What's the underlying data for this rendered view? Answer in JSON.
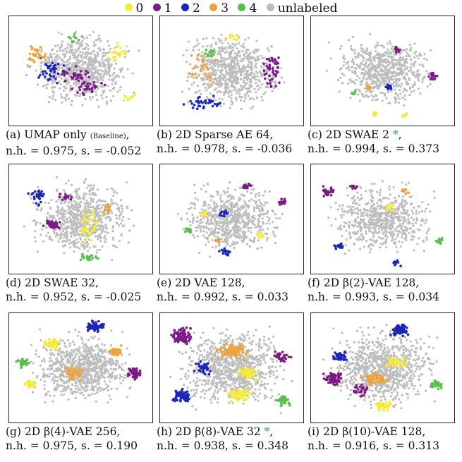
{
  "legend": {
    "items": [
      {
        "label": "0",
        "color": "#f5ec3a"
      },
      {
        "label": "1",
        "color": "#7b1b86"
      },
      {
        "label": "2",
        "color": "#1c26b8"
      },
      {
        "label": "3",
        "color": "#f0a23a"
      },
      {
        "label": "4",
        "color": "#55c04a"
      },
      {
        "label": "unlabeled",
        "color": "#bdbdbd"
      }
    ]
  },
  "panels": [
    {
      "id": "a",
      "prefix": "(a) UMAP only",
      "small": "(Baseline)",
      "suffix": ",",
      "star": "",
      "metrics": "n.h. = 0.975, s. = -0.052"
    },
    {
      "id": "b",
      "prefix": "(b) 2D Sparse AE 64,",
      "small": "",
      "suffix": "",
      "star": "",
      "metrics": "n.h. = 0.978, s. = -0.036"
    },
    {
      "id": "c",
      "prefix": "(c) 2D SWAE 2",
      "small": "",
      "suffix": ",",
      "star": "*",
      "metrics": "n.h. = 0.994, s. = 0.373"
    },
    {
      "id": "d",
      "prefix": "(d) 2D SWAE 32,",
      "small": "",
      "suffix": "",
      "star": "",
      "metrics": "n.h. = 0.952, s. = -0.025"
    },
    {
      "id": "e",
      "prefix": "(e) 2D VAE 128,",
      "small": "",
      "suffix": "",
      "star": "",
      "metrics": "n.h. = 0.992, s. = 0.033"
    },
    {
      "id": "f",
      "prefix": "(f) 2D β(2)-VAE 128,",
      "small": "",
      "suffix": "",
      "star": "",
      "metrics": "n.h. = 0.993, s. = 0.034"
    },
    {
      "id": "g",
      "prefix": "(g) 2D β(4)-VAE 256,",
      "small": "",
      "suffix": "",
      "star": "",
      "metrics": "n.h. = 0.975, s. = 0.190"
    },
    {
      "id": "h",
      "prefix": "(h) 2D β(8)-VAE 32",
      "small": "",
      "suffix": ",",
      "star": "*",
      "metrics": "n.h. = 0.938, s. = 0.348"
    },
    {
      "id": "i",
      "prefix": "(i) 2D β(10)-VAE 128,",
      "small": "",
      "suffix": "",
      "star": "",
      "metrics": "n.h. = 0.916, s. = 0.313"
    }
  ],
  "chart_data": {
    "type": "scatter",
    "description_of_marks": "clusters",
    "series_labels": [
      "0",
      "1",
      "2",
      "3",
      "4",
      "unlabeled"
    ],
    "plots": [
      {
        "id": "a",
        "clusters": [
          [
            0.5,
            0.5,
            0.42,
            0.4,
            5,
            700
          ],
          [
            0.45,
            0.55,
            0.18,
            0.12,
            1,
            40
          ],
          [
            0.55,
            0.65,
            0.15,
            0.08,
            1,
            30
          ],
          [
            0.3,
            0.5,
            0.15,
            0.15,
            2,
            40
          ],
          [
            0.2,
            0.35,
            0.1,
            0.15,
            3,
            30
          ],
          [
            0.75,
            0.35,
            0.1,
            0.12,
            0,
            25
          ],
          [
            0.45,
            0.2,
            0.08,
            0.05,
            4,
            10
          ],
          [
            0.85,
            0.75,
            0.06,
            0.05,
            0,
            10
          ]
        ]
      },
      {
        "id": "b",
        "clusters": [
          [
            0.5,
            0.5,
            0.42,
            0.4,
            5,
            700
          ],
          [
            0.78,
            0.5,
            0.08,
            0.25,
            1,
            45
          ],
          [
            0.3,
            0.8,
            0.18,
            0.08,
            2,
            35
          ],
          [
            0.3,
            0.5,
            0.12,
            0.2,
            3,
            30
          ],
          [
            0.35,
            0.35,
            0.05,
            0.08,
            4,
            12
          ],
          [
            0.5,
            0.2,
            0.06,
            0.05,
            0,
            10
          ]
        ]
      },
      {
        "id": "c",
        "clusters": [
          [
            0.5,
            0.5,
            0.42,
            0.38,
            5,
            650
          ],
          [
            0.85,
            0.55,
            0.04,
            0.06,
            1,
            20
          ],
          [
            0.6,
            0.3,
            0.03,
            0.05,
            1,
            10
          ],
          [
            0.55,
            0.65,
            0.03,
            0.03,
            2,
            12
          ],
          [
            0.3,
            0.7,
            0.03,
            0.03,
            4,
            10
          ],
          [
            0.45,
            0.9,
            0.03,
            0.03,
            0,
            10
          ],
          [
            0.65,
            0.9,
            0.03,
            0.03,
            0,
            8
          ],
          [
            0.4,
            0.65,
            0.03,
            0.03,
            3,
            8
          ]
        ]
      },
      {
        "id": "d",
        "clusters": [
          [
            0.5,
            0.5,
            0.42,
            0.4,
            5,
            700
          ],
          [
            0.2,
            0.3,
            0.08,
            0.1,
            2,
            30
          ],
          [
            0.3,
            0.55,
            0.08,
            0.06,
            1,
            30
          ],
          [
            0.55,
            0.55,
            0.12,
            0.2,
            0,
            40
          ],
          [
            0.55,
            0.85,
            0.1,
            0.04,
            4,
            20
          ],
          [
            0.4,
            0.3,
            0.06,
            0.06,
            1,
            15
          ],
          [
            0.7,
            0.4,
            0.06,
            0.06,
            3,
            12
          ]
        ]
      },
      {
        "id": "e",
        "clusters": [
          [
            0.5,
            0.5,
            0.42,
            0.38,
            5,
            650
          ],
          [
            0.85,
            0.35,
            0.04,
            0.05,
            1,
            20
          ],
          [
            0.6,
            0.2,
            0.04,
            0.04,
            1,
            15
          ],
          [
            0.45,
            0.45,
            0.04,
            0.04,
            2,
            12
          ],
          [
            0.45,
            0.8,
            0.05,
            0.04,
            2,
            15
          ],
          [
            0.2,
            0.6,
            0.04,
            0.04,
            4,
            12
          ],
          [
            0.3,
            0.45,
            0.04,
            0.04,
            0,
            10
          ],
          [
            0.7,
            0.65,
            0.04,
            0.04,
            0,
            10
          ],
          [
            0.4,
            0.7,
            0.04,
            0.04,
            3,
            10
          ]
        ]
      },
      {
        "id": "f",
        "clusters": [
          [
            0.5,
            0.5,
            0.42,
            0.38,
            5,
            650
          ],
          [
            0.12,
            0.25,
            0.06,
            0.06,
            1,
            25
          ],
          [
            0.3,
            0.2,
            0.04,
            0.04,
            1,
            12
          ],
          [
            0.2,
            0.75,
            0.05,
            0.04,
            2,
            15
          ],
          [
            0.6,
            0.9,
            0.04,
            0.04,
            2,
            12
          ],
          [
            0.9,
            0.7,
            0.04,
            0.04,
            4,
            12
          ],
          [
            0.55,
            0.4,
            0.04,
            0.04,
            0,
            10
          ],
          [
            0.65,
            0.25,
            0.04,
            0.04,
            3,
            10
          ]
        ]
      },
      {
        "id": "g",
        "clusters": [
          [
            0.5,
            0.5,
            0.42,
            0.38,
            5,
            800
          ],
          [
            0.6,
            0.12,
            0.08,
            0.07,
            2,
            60
          ],
          [
            0.3,
            0.28,
            0.08,
            0.07,
            0,
            50
          ],
          [
            0.88,
            0.55,
            0.07,
            0.07,
            1,
            50
          ],
          [
            0.1,
            0.45,
            0.06,
            0.06,
            4,
            35
          ],
          [
            0.45,
            0.55,
            0.1,
            0.08,
            3,
            50
          ],
          [
            0.75,
            0.35,
            0.06,
            0.06,
            3,
            30
          ],
          [
            0.15,
            0.65,
            0.06,
            0.05,
            0,
            25
          ]
        ]
      },
      {
        "id": "h",
        "clusters": [
          [
            0.5,
            0.5,
            0.45,
            0.42,
            5,
            900
          ],
          [
            0.15,
            0.2,
            0.1,
            0.1,
            1,
            90
          ],
          [
            0.15,
            0.75,
            0.08,
            0.08,
            2,
            70
          ],
          [
            0.5,
            0.35,
            0.15,
            0.1,
            3,
            80
          ],
          [
            0.55,
            0.75,
            0.1,
            0.08,
            0,
            60
          ],
          [
            0.85,
            0.4,
            0.08,
            0.06,
            1,
            30
          ],
          [
            0.85,
            0.8,
            0.07,
            0.06,
            4,
            40
          ],
          [
            0.6,
            0.55,
            0.1,
            0.07,
            0,
            50
          ],
          [
            0.3,
            0.5,
            0.08,
            0.08,
            2,
            30
          ]
        ]
      },
      {
        "id": "i",
        "clusters": [
          [
            0.5,
            0.5,
            0.45,
            0.42,
            5,
            900
          ],
          [
            0.62,
            0.15,
            0.08,
            0.07,
            2,
            70
          ],
          [
            0.15,
            0.6,
            0.08,
            0.08,
            1,
            70
          ],
          [
            0.2,
            0.4,
            0.08,
            0.06,
            2,
            40
          ],
          [
            0.45,
            0.6,
            0.12,
            0.08,
            3,
            60
          ],
          [
            0.5,
            0.85,
            0.08,
            0.06,
            0,
            50
          ],
          [
            0.88,
            0.65,
            0.07,
            0.05,
            4,
            30
          ],
          [
            0.6,
            0.45,
            0.1,
            0.07,
            0,
            40
          ],
          [
            0.35,
            0.7,
            0.08,
            0.08,
            1,
            30
          ]
        ]
      }
    ]
  }
}
